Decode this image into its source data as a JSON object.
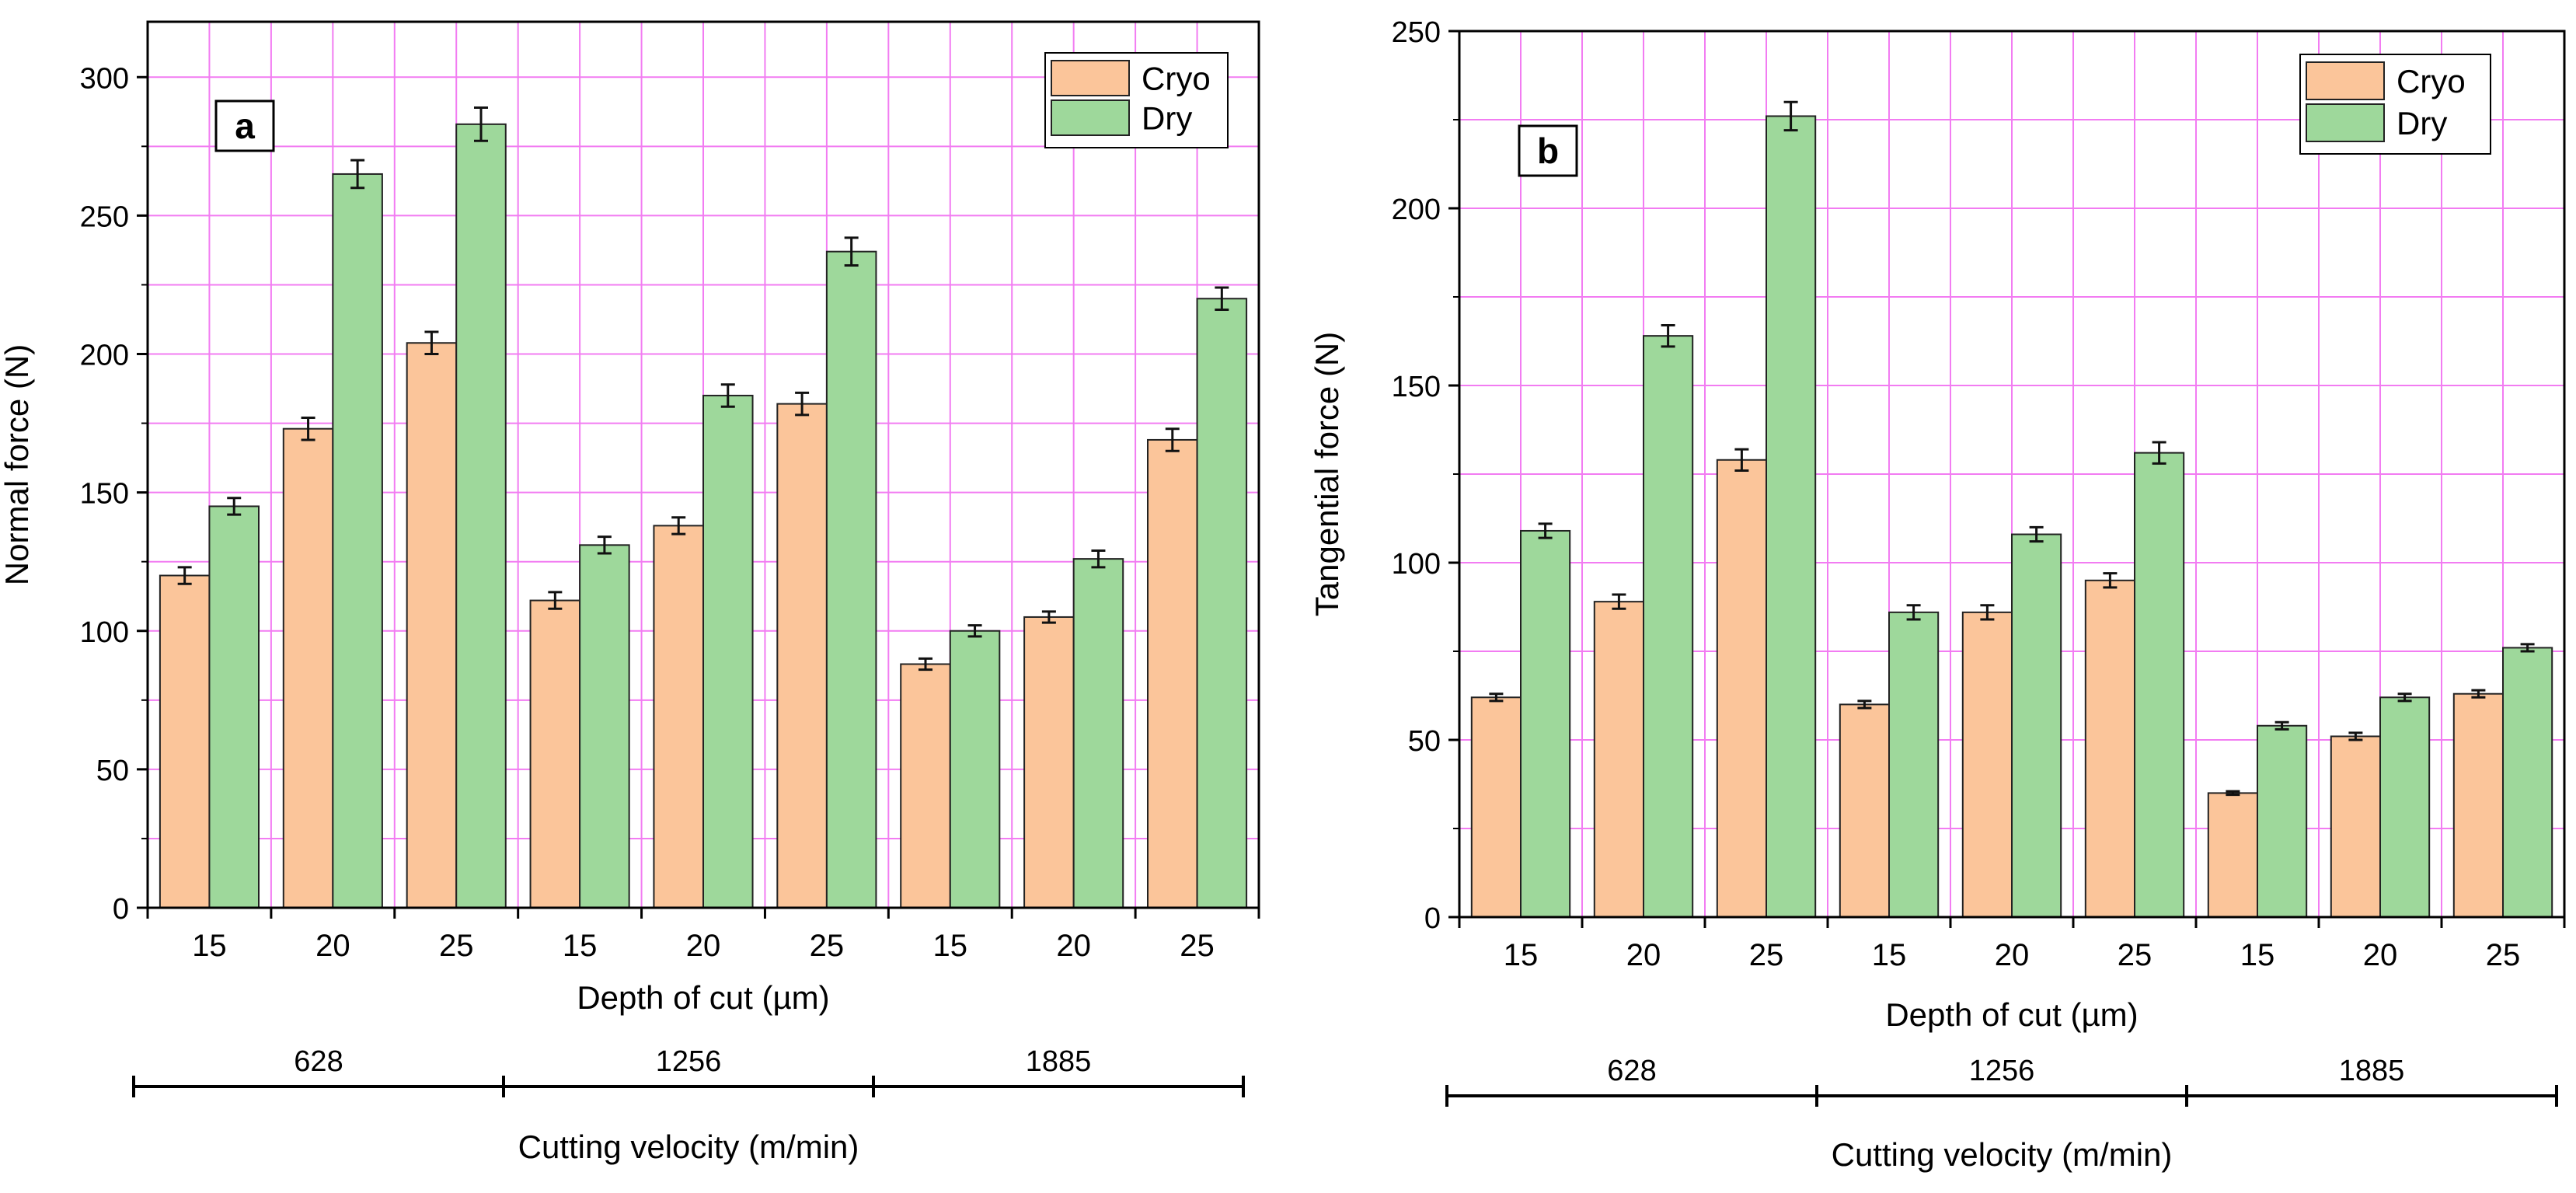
{
  "chart_data": [
    {
      "panel_label": "a",
      "type": "bar",
      "title": "",
      "xlabel": "Depth of cut (µm)",
      "ylabel": "Normal force (N)",
      "ylim": [
        0,
        320
      ],
      "yticks": [
        0,
        50,
        100,
        150,
        200,
        250,
        300
      ],
      "grid": true,
      "legend_position": "top-right",
      "categories": [
        "15",
        "20",
        "25",
        "15",
        "20",
        "25",
        "15",
        "20",
        "25"
      ],
      "series": [
        {
          "name": "Cryo",
          "color": "#fbc59a",
          "values": [
            120,
            173,
            204,
            111,
            138,
            182,
            88,
            105,
            169
          ],
          "errors": [
            3,
            4,
            4,
            3,
            3,
            4,
            2,
            2,
            4
          ]
        },
        {
          "name": "Dry",
          "color": "#9ed89b",
          "values": [
            145,
            265,
            283,
            131,
            185,
            237,
            100,
            126,
            220
          ],
          "errors": [
            3,
            5,
            6,
            3,
            4,
            5,
            2,
            3,
            4
          ]
        }
      ],
      "groups": {
        "labels": [
          "628",
          "1256",
          "1885"
        ],
        "title": "Cutting velocity (m/min)"
      }
    },
    {
      "panel_label": "b",
      "type": "bar",
      "title": "",
      "xlabel": "Depth of cut (µm)",
      "ylabel": "Tangential force (N)",
      "ylim": [
        0,
        250
      ],
      "yticks": [
        0,
        50,
        100,
        150,
        200,
        250
      ],
      "grid": true,
      "legend_position": "top-right",
      "categories": [
        "15",
        "20",
        "25",
        "15",
        "20",
        "25",
        "15",
        "20",
        "25"
      ],
      "series": [
        {
          "name": "Cryo",
          "color": "#fbc59a",
          "values": [
            62,
            89,
            129,
            60,
            86,
            95,
            35,
            51,
            63
          ],
          "errors": [
            1,
            2,
            3,
            1,
            2,
            2,
            0.5,
            1,
            1
          ]
        },
        {
          "name": "Dry",
          "color": "#9ed89b",
          "values": [
            109,
            164,
            226,
            86,
            108,
            131,
            54,
            62,
            76
          ],
          "errors": [
            2,
            3,
            4,
            2,
            2,
            3,
            1,
            1,
            1
          ]
        }
      ],
      "groups": {
        "labels": [
          "628",
          "1256",
          "1885"
        ],
        "title": "Cutting velocity (m/min)"
      }
    }
  ]
}
